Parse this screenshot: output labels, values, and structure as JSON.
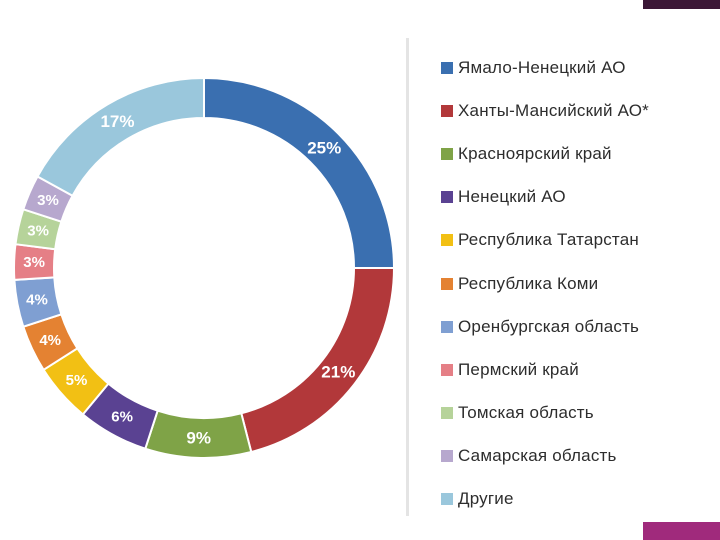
{
  "chart_data": {
    "type": "pie",
    "categories": [
      "Ямало-Ненецкий АО",
      "Ханты-Мансийский АО*",
      "Красноярский край",
      "Ненецкий АО",
      "Республика Татарстан",
      "Республика Коми",
      "Оренбургская область",
      "Пермский край",
      "Томская область",
      "Самарская область",
      "Другие"
    ],
    "values": [
      25,
      21,
      9,
      6,
      5,
      4,
      4,
      3,
      3,
      3,
      17
    ],
    "data_labels": [
      "25%",
      "21%",
      "9%",
      "6%",
      "5%",
      "4%",
      "4%",
      "3%",
      "3%",
      "3%",
      "17%"
    ],
    "colors": [
      "#3a6fb0",
      "#b2383a",
      "#7fa347",
      "#5a4292",
      "#f2c014",
      "#e48232",
      "#7f9fd2",
      "#e57f86",
      "#b6d39a",
      "#b7a8ce",
      "#9ac7dc"
    ],
    "label_colors": [
      "#ffffff",
      "#ffffff",
      "#ffffff",
      "#ffffff",
      "#ffffff",
      "#ffffff",
      "#ffffff",
      "#ffffff",
      "#ffffff",
      "#ffffff",
      "#ffffff"
    ],
    "donut": true,
    "legend_position": "right"
  }
}
